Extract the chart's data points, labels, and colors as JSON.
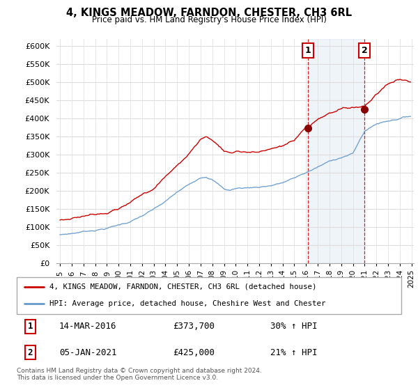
{
  "title": "4, KINGS MEADOW, FARNDON, CHESTER, CH3 6RL",
  "subtitle": "Price paid vs. HM Land Registry's House Price Index (HPI)",
  "ylim": [
    0,
    620000
  ],
  "yticks": [
    0,
    50000,
    100000,
    150000,
    200000,
    250000,
    300000,
    350000,
    400000,
    450000,
    500000,
    550000,
    600000
  ],
  "ytick_labels": [
    "£0",
    "£50K",
    "£100K",
    "£150K",
    "£200K",
    "£250K",
    "£300K",
    "£350K",
    "£400K",
    "£450K",
    "£500K",
    "£550K",
    "£600K"
  ],
  "hpi_color": "#6699cc",
  "price_color": "#cc0000",
  "marker1_year": 2016,
  "marker1_month": 3,
  "marker2_year": 2021,
  "marker2_month": 1,
  "sale1_date": "14-MAR-2016",
  "sale1_price": "£373,700",
  "sale1_hpi": "30% ↑ HPI",
  "sale2_date": "05-JAN-2021",
  "sale2_price": "£425,000",
  "sale2_hpi": "21% ↑ HPI",
  "legend_line1": "4, KINGS MEADOW, FARNDON, CHESTER, CH3 6RL (detached house)",
  "legend_line2": "HPI: Average price, detached house, Cheshire West and Chester",
  "footnote": "Contains HM Land Registry data © Crown copyright and database right 2024.\nThis data is licensed under the Open Government Licence v3.0.",
  "grid_color": "#dddddd",
  "hpi_key_years": [
    1995,
    1996,
    1997,
    1998,
    1999,
    2000,
    2001,
    2002,
    2003,
    2004,
    2005,
    2006,
    2007,
    2007.5,
    2008,
    2008.5,
    2009,
    2009.5,
    2010,
    2011,
    2012,
    2013,
    2014,
    2015,
    2016,
    2017,
    2018,
    2019,
    2020,
    2021,
    2022,
    2023,
    2024,
    2024.9
  ],
  "hpi_key_vals": [
    78000,
    82000,
    88000,
    93000,
    99000,
    108000,
    118000,
    133000,
    150000,
    170000,
    195000,
    215000,
    238000,
    242000,
    235000,
    222000,
    208000,
    205000,
    210000,
    212000,
    215000,
    220000,
    228000,
    240000,
    255000,
    270000,
    285000,
    298000,
    308000,
    370000,
    390000,
    400000,
    408000,
    415000
  ],
  "price_key_years": [
    1995,
    1996,
    1997,
    1998,
    1999,
    2000,
    2001,
    2002,
    2003,
    2004,
    2005,
    2006,
    2007,
    2007.5,
    2008,
    2008.5,
    2009,
    2009.5,
    2010,
    2011,
    2012,
    2013,
    2014,
    2015,
    2016.2,
    2017,
    2018,
    2019,
    2020,
    2021.0,
    2022,
    2023,
    2024,
    2024.9
  ],
  "price_key_vals": [
    118000,
    124000,
    132000,
    140000,
    148000,
    160000,
    175000,
    195000,
    215000,
    248000,
    278000,
    310000,
    352000,
    358000,
    348000,
    335000,
    318000,
    315000,
    318000,
    320000,
    318000,
    322000,
    330000,
    342000,
    373700,
    390000,
    405000,
    415000,
    420000,
    425000,
    460000,
    490000,
    505000,
    500000
  ]
}
